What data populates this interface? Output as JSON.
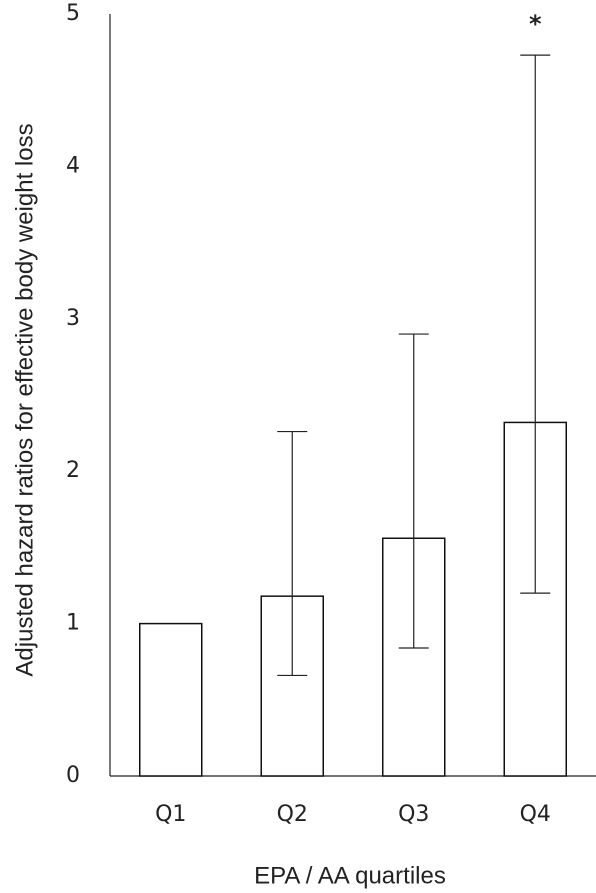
{
  "chart_data": {
    "type": "bar",
    "x_label": "EPA / AA quartiles",
    "y_label": "Adjusted hazard ratios for effective body weight loss",
    "categories": [
      "Q1",
      "Q2",
      "Q3",
      "Q4"
    ],
    "values": [
      1.0,
      1.18,
      1.56,
      2.32
    ],
    "ci_low": [
      null,
      0.66,
      0.84,
      1.2
    ],
    "ci_high": [
      null,
      2.26,
      2.9,
      4.73
    ],
    "significance": [
      null,
      null,
      null,
      "*"
    ],
    "color": "#ffffff",
    "ylim": [
      0,
      5
    ],
    "yticks": [
      0,
      1,
      2,
      3,
      4,
      5
    ],
    "grid": false
  }
}
